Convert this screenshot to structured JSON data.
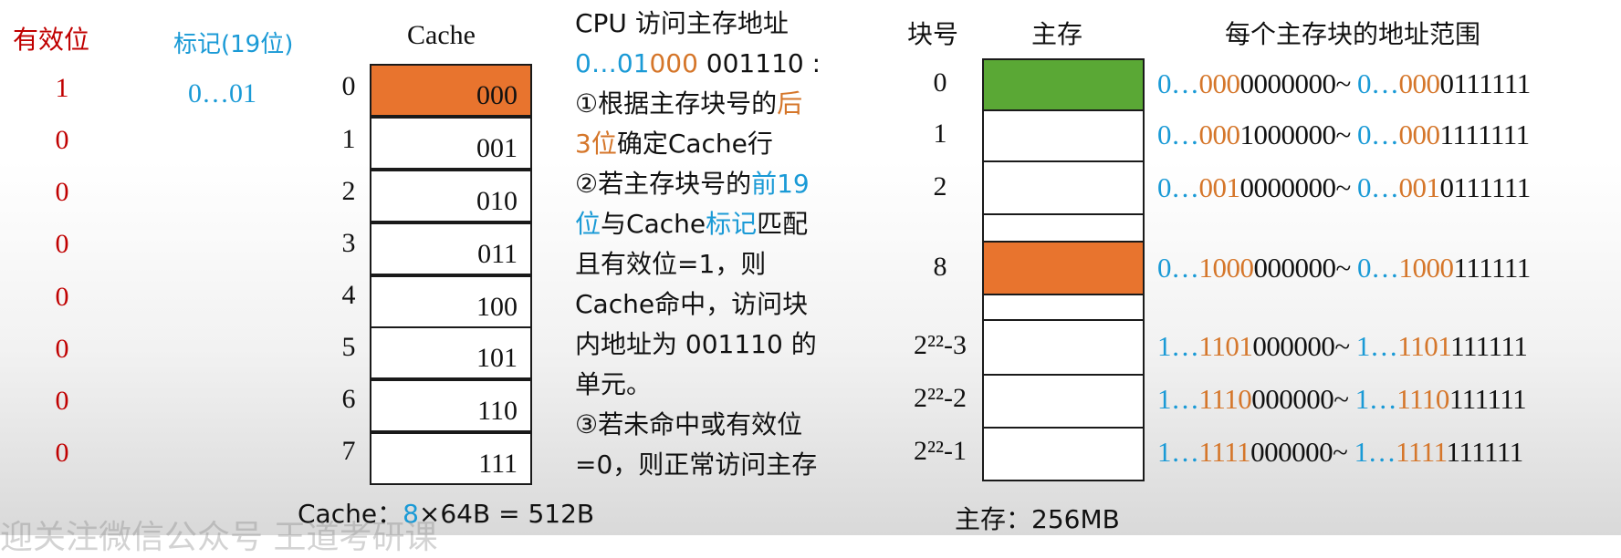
{
  "headers": {
    "valid": "有效位",
    "tag": "标记(19位)",
    "cache": "Cache",
    "block_no": "块号",
    "memory": "主存",
    "range": "每个主存块的地址范围"
  },
  "tag_value": "0…01",
  "valid_bits": [
    "1",
    "0",
    "0",
    "0",
    "0",
    "0",
    "0",
    "0"
  ],
  "cache_rows": [
    {
      "index": "0",
      "tag": "000"
    },
    {
      "index": "1",
      "tag": "001"
    },
    {
      "index": "2",
      "tag": "010"
    },
    {
      "index": "3",
      "tag": "011"
    },
    {
      "index": "4",
      "tag": "100"
    },
    {
      "index": "5",
      "tag": "101"
    },
    {
      "index": "6",
      "tag": "110"
    },
    {
      "index": "7",
      "tag": "111"
    }
  ],
  "explanation": {
    "title": "CPU 访问主存地址",
    "addr_part1": "0…01",
    "addr_part2": "000",
    "addr_part3": " 001110 :",
    "s1_a": "①根据主存块号的",
    "s1_b": "后",
    "s1_c": "3位",
    "s1_d": "确定Cache行",
    "s2_a": "②若主存块号的",
    "s2_b": "前19",
    "s2_c": "位",
    "s2_d": "与Cache",
    "s2_e": "标记",
    "s2_f": "匹配",
    "s2_g": "且有效位=1，则",
    "s2_h": "Cache命中，访问块",
    "s2_i": "内地址为 001110 的",
    "s2_j": "单元。",
    "s3_a": "③若未命中或有效位",
    "s3_b": "=0，则正常访问主存"
  },
  "memory_blocks": [
    {
      "num": "0",
      "prefix": "0…",
      "mid": "000",
      "suf": "0000000",
      "prefix2": "0…",
      "mid2": "000",
      "suf2": "0111111"
    },
    {
      "num": "1",
      "prefix": "0…",
      "mid": "000",
      "suf": "1000000",
      "prefix2": "0…",
      "mid2": "000",
      "suf2": "1111111"
    },
    {
      "num": "2",
      "prefix": "0…",
      "mid": "001",
      "suf": "0000000",
      "prefix2": "0…",
      "mid2": "001",
      "suf2": "0111111"
    },
    {
      "num": "8",
      "prefix": "0…",
      "mid": "1000",
      "suf": "000000",
      "prefix2": "0…",
      "mid2": "1000",
      "suf2": "111111"
    },
    {
      "num": "2²²-3",
      "prefix": "1…",
      "mid": "1101",
      "suf": "000000",
      "prefix2": "1…",
      "mid2": "1101",
      "suf2": "111111"
    },
    {
      "num": "2²²-2",
      "prefix": "1…",
      "mid": "1110",
      "suf": "000000",
      "prefix2": "1…",
      "mid2": "1110",
      "suf2": "111111"
    },
    {
      "num": "2²²-1",
      "prefix": "1…",
      "mid": "1111",
      "suf": "000000",
      "prefix2": "1…",
      "mid2": "1111",
      "suf2": "111111"
    }
  ],
  "tilde": "~",
  "footer": {
    "cache_a": "Cache：",
    "cache_b": "8",
    "cache_c": "×64B = 512B",
    "mem": "主存：256MB"
  },
  "watermark": "迎关注微信公众号 王道考研课",
  "colors": {
    "orange": "#e8742e",
    "green": "#5aa835",
    "red": "#c00000",
    "blue": "#1a9ad6"
  }
}
